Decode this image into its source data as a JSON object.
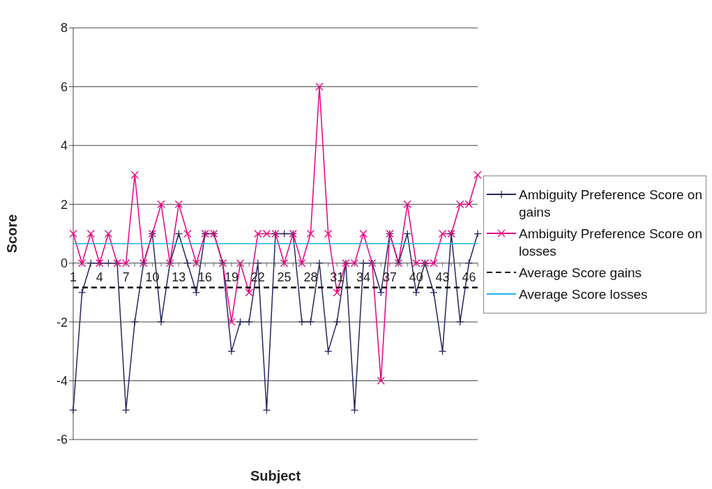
{
  "chart_data": {
    "type": "line",
    "xlabel": "Subject",
    "ylabel": "Score",
    "categories": [
      "1",
      null,
      null,
      "4",
      null,
      null,
      "7",
      null,
      null,
      "10",
      null,
      null,
      "13",
      null,
      null,
      "16",
      null,
      null,
      "19",
      null,
      null,
      "22",
      null,
      null,
      "25",
      null,
      null,
      "28",
      null,
      null,
      "31",
      null,
      null,
      "34",
      null,
      null,
      "37",
      null,
      null,
      "40",
      null,
      null,
      "43",
      null,
      null,
      "46",
      null
    ],
    "series": [
      {
        "name": "Ambiguity Preference Score on gains",
        "color": "#262660",
        "marker": "plus",
        "values": [
          -5,
          -1,
          0,
          0,
          0,
          0,
          -5,
          -2,
          0,
          1,
          -2,
          0,
          1,
          0,
          -1,
          1,
          1,
          0,
          -3,
          -2,
          -2,
          0,
          -5,
          1,
          1,
          1,
          -2,
          -2,
          0,
          -3,
          -2,
          0,
          -5,
          0,
          0,
          -1,
          1,
          0,
          1,
          -1,
          0,
          -1,
          -3,
          1,
          -2,
          0,
          1
        ]
      },
      {
        "name": "Ambiguity Preference Score on losses",
        "color": "#e6007e",
        "marker": "cross",
        "values": [
          1,
          0,
          1,
          0,
          1,
          0,
          0,
          3,
          0,
          1,
          2,
          0,
          2,
          1,
          0,
          1,
          1,
          0,
          -2,
          0,
          -1,
          1,
          1,
          1,
          0,
          1,
          0,
          1,
          6,
          1,
          -1,
          0,
          0,
          1,
          0,
          -4,
          1,
          0,
          2,
          0,
          0,
          0,
          1,
          1,
          2,
          2,
          3
        ]
      },
      {
        "name": "Average Score gains",
        "color": "#000000",
        "marker": "none",
        "line_style": "dashed",
        "values": [
          -0.83,
          -0.83,
          -0.83,
          -0.83,
          -0.83,
          -0.83,
          -0.83,
          -0.83,
          -0.83,
          -0.83,
          -0.83,
          -0.83,
          -0.83,
          -0.83,
          -0.83,
          -0.83,
          -0.83,
          -0.83,
          -0.83,
          -0.83,
          -0.83,
          -0.83,
          -0.83,
          -0.83,
          -0.83,
          -0.83,
          -0.83,
          -0.83,
          -0.83,
          -0.83,
          -0.83,
          -0.83,
          -0.83,
          -0.83,
          -0.83,
          -0.83,
          -0.83,
          -0.83,
          -0.83,
          -0.83,
          -0.83,
          -0.83,
          -0.83,
          -0.83,
          -0.83,
          -0.83,
          -0.83
        ]
      },
      {
        "name": "Average Score losses",
        "color": "#1fb5ea",
        "marker": "none",
        "values": [
          0.66,
          0.66,
          0.66,
          0.66,
          0.66,
          0.66,
          0.66,
          0.66,
          0.66,
          0.66,
          0.66,
          0.66,
          0.66,
          0.66,
          0.66,
          0.66,
          0.66,
          0.66,
          0.66,
          0.66,
          0.66,
          0.66,
          0.66,
          0.66,
          0.66,
          0.66,
          0.66,
          0.66,
          0.66,
          0.66,
          0.66,
          0.66,
          0.66,
          0.66,
          0.66,
          0.66,
          0.66,
          0.66,
          0.66,
          0.66,
          0.66,
          0.66,
          0.66,
          0.66,
          0.66,
          0.66,
          0.66
        ]
      }
    ],
    "ylim": [
      -6,
      8
    ],
    "yticks": [
      -6,
      -4,
      -2,
      0,
      2,
      4,
      6,
      8
    ],
    "grid": "y",
    "legend": "right"
  }
}
